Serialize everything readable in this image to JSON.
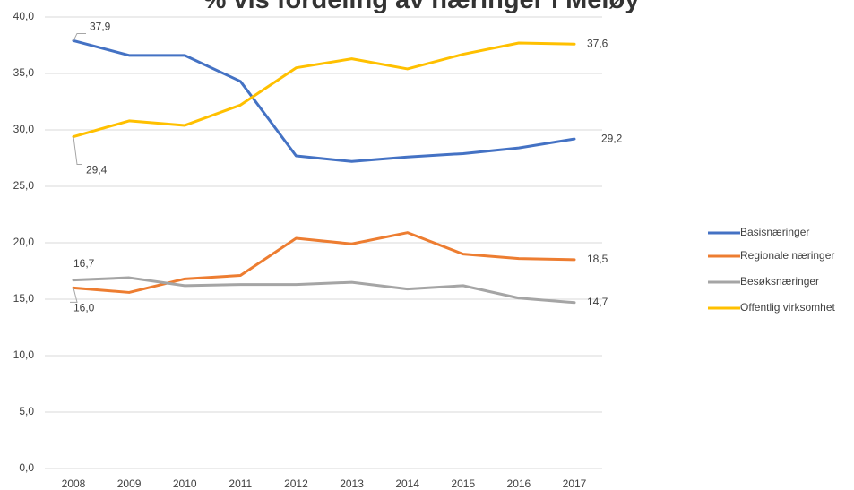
{
  "chart_data": {
    "type": "line",
    "title": "% vis fordeling av næringer i Meløy",
    "categories": [
      "2008",
      "2009",
      "2010",
      "2011",
      "2012",
      "2013",
      "2014",
      "2015",
      "2016",
      "2017"
    ],
    "ylim": [
      0,
      40
    ],
    "yticks": [
      {
        "value": 0,
        "label": "0,0"
      },
      {
        "value": 5,
        "label": "5,0"
      },
      {
        "value": 10,
        "label": "10,0"
      },
      {
        "value": 15,
        "label": "15,0"
      },
      {
        "value": 20,
        "label": "20,0"
      },
      {
        "value": 25,
        "label": "25,0"
      },
      {
        "value": 30,
        "label": "30,0"
      },
      {
        "value": 35,
        "label": "35,0"
      },
      {
        "value": 40,
        "label": "40,0"
      }
    ],
    "grid": true,
    "legend": "right",
    "series": [
      {
        "name": "Basisnæringer",
        "color": "#4472c4",
        "values": [
          37.9,
          36.6,
          36.6,
          34.3,
          27.7,
          27.2,
          27.6,
          27.9,
          28.4,
          29.2
        ],
        "value_labels": [
          "37,9",
          null,
          null,
          null,
          null,
          null,
          null,
          null,
          null,
          "29,2"
        ]
      },
      {
        "name": "Regionale næringer",
        "color": "#ed7d31",
        "values": [
          16.0,
          15.6,
          16.8,
          17.1,
          20.4,
          19.9,
          20.9,
          19.0,
          18.6,
          18.5
        ],
        "value_labels": [
          "16,0",
          null,
          null,
          null,
          null,
          null,
          null,
          null,
          null,
          "18,5"
        ]
      },
      {
        "name": "Besøksnæringer",
        "color": "#a5a5a5",
        "values": [
          16.7,
          16.9,
          16.2,
          16.3,
          16.3,
          16.5,
          15.9,
          16.2,
          15.1,
          14.7
        ],
        "value_labels": [
          "16,7",
          null,
          null,
          null,
          null,
          null,
          null,
          null,
          null,
          "14,7"
        ]
      },
      {
        "name": "Offentlig virksomhet",
        "color": "#ffc000",
        "values": [
          29.4,
          30.8,
          30.4,
          32.2,
          35.5,
          36.3,
          35.4,
          36.7,
          37.7,
          37.6
        ],
        "value_labels": [
          "29,4",
          null,
          null,
          null,
          null,
          null,
          null,
          null,
          null,
          "37,6"
        ]
      }
    ]
  }
}
